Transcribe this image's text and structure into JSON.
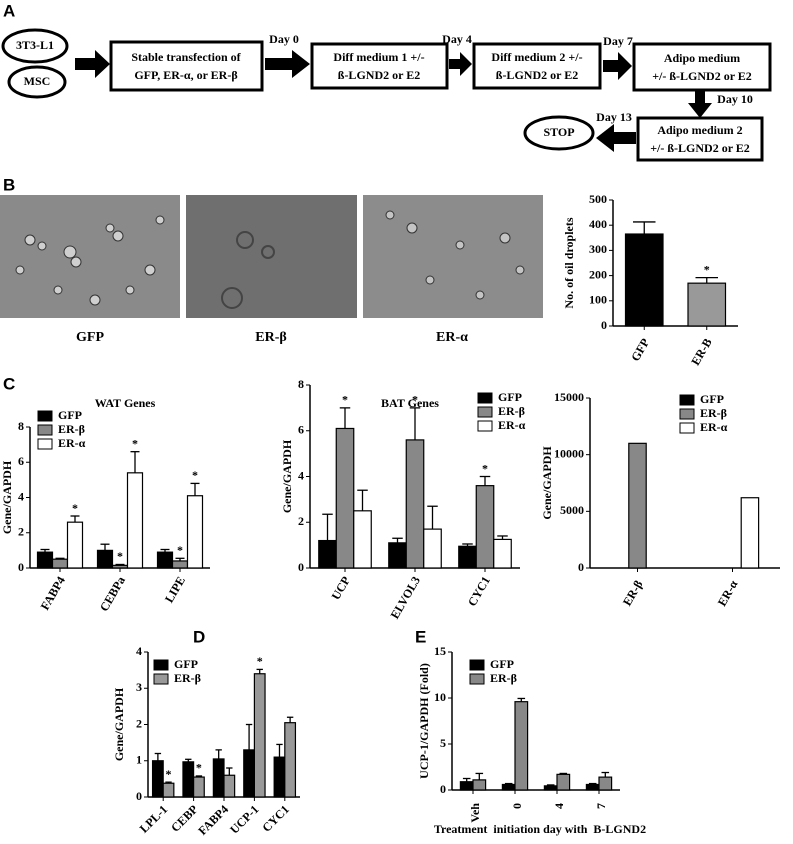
{
  "panels": [
    "A",
    "B",
    "C",
    "D",
    "E"
  ],
  "flowchart": {
    "nodes": [
      {
        "lines": [
          "3T3-L1"
        ]
      },
      {
        "lines": [
          "MSC"
        ]
      },
      {
        "lines": [
          "Stable transfection of",
          "GFP, ER-α, or ER-β"
        ]
      },
      {
        "lines": [
          "Diff medium 1 +/-",
          "ß-LGND2 or E2"
        ]
      },
      {
        "lines": [
          "Diff medium 2 +/-",
          "ß-LGND2 or E2"
        ]
      },
      {
        "lines": [
          "Adipo medium",
          "+/- ß-LGND2 or E2"
        ]
      },
      {
        "lines": [
          "Adipo medium 2",
          "+/- ß-LGND2 or E2"
        ]
      },
      {
        "lines": [
          "STOP"
        ]
      }
    ],
    "edges": [
      "Day 0",
      "Day 4",
      "Day 7",
      "Day 10",
      "Day 13"
    ]
  },
  "images": [
    "GFP",
    "ER-β",
    "ER-α"
  ],
  "chart_data": [
    {
      "type": "bar",
      "ylabel": "No. of oil droplets",
      "categories": [
        "GFP",
        "ER-B"
      ],
      "values": [
        365,
        170
      ],
      "errors": [
        48,
        22
      ],
      "colors": [
        "#000000",
        "#999999"
      ],
      "significance": [
        null,
        "*"
      ],
      "ylim": [
        0,
        500
      ],
      "yticks": [
        0,
        100,
        200,
        300,
        400,
        500
      ]
    },
    {
      "type": "bar",
      "title": "WAT Genes",
      "ylabel": "Gene/GAPDH",
      "categories": [
        "FABP4",
        "CEBPa",
        "LIPE"
      ],
      "series": [
        {
          "name": "GFP",
          "color": "#000000",
          "values": [
            0.9,
            1.0,
            0.9
          ],
          "errors": [
            0.15,
            0.35,
            0.15
          ],
          "significance": [
            null,
            null,
            null
          ]
        },
        {
          "name": "ER-β",
          "color": "#888888",
          "values": [
            0.5,
            0.15,
            0.4
          ],
          "errors": [
            0.05,
            0.05,
            0.15
          ],
          "significance": [
            null,
            "*",
            "*"
          ]
        },
        {
          "name": "ER-α",
          "color": "#ffffff",
          "values": [
            2.6,
            5.4,
            4.1
          ],
          "errors": [
            0.35,
            1.2,
            0.7
          ],
          "significance": [
            "*",
            "*",
            "*"
          ]
        }
      ],
      "ylim": [
        0,
        8
      ],
      "yticks": [
        0,
        2,
        4,
        6,
        8
      ]
    },
    {
      "type": "bar",
      "title": "BAT Genes",
      "ylabel": "Gene/GAPDH",
      "categories": [
        "UCP",
        "ELVOL3",
        "CYC1"
      ],
      "series": [
        {
          "name": "GFP",
          "color": "#000000",
          "values": [
            1.2,
            1.1,
            0.95
          ],
          "errors": [
            1.15,
            0.2,
            0.1
          ],
          "significance": [
            null,
            null,
            null
          ]
        },
        {
          "name": "ER-β",
          "color": "#888888",
          "values": [
            6.1,
            5.6,
            3.6
          ],
          "errors": [
            0.9,
            1.4,
            0.4
          ],
          "significance": [
            "*",
            "*",
            "*"
          ]
        },
        {
          "name": "ER-α",
          "color": "#ffffff",
          "values": [
            2.5,
            1.7,
            1.25
          ],
          "errors": [
            0.9,
            1.0,
            0.15
          ],
          "significance": [
            null,
            null,
            null
          ]
        }
      ],
      "ylim": [
        0,
        8
      ],
      "yticks": [
        0,
        2,
        4,
        6,
        8
      ]
    },
    {
      "type": "bar",
      "ylabel": "Gene/GAPDH",
      "categories": [
        "ER-β",
        "ER-α"
      ],
      "series": [
        {
          "name": "GFP",
          "color": "#000000",
          "values": [
            null,
            null
          ]
        },
        {
          "name": "ER-β",
          "color": "#888888",
          "values": [
            11000,
            null
          ]
        },
        {
          "name": "ER-α",
          "color": "#ffffff",
          "values": [
            null,
            6200
          ]
        }
      ],
      "ylim": [
        0,
        15000
      ],
      "yticks": [
        0,
        5000,
        10000,
        15000
      ]
    },
    {
      "type": "bar",
      "ylabel": "Gene/GAPDH",
      "categories": [
        "LPL-1",
        "CEBP",
        "FABP4",
        "UCP-1",
        "CYC1"
      ],
      "series": [
        {
          "name": "GFP",
          "color": "#000000",
          "values": [
            1.0,
            0.97,
            1.05,
            1.3,
            1.1
          ],
          "errors": [
            0.2,
            0.07,
            0.25,
            0.7,
            0.35
          ],
          "significance": [
            null,
            null,
            null,
            null,
            null
          ]
        },
        {
          "name": "ER-β",
          "color": "#999999",
          "values": [
            0.38,
            0.55,
            0.6,
            3.4,
            2.05
          ],
          "errors": [
            0.03,
            0.03,
            0.2,
            0.12,
            0.15
          ],
          "significance": [
            "*",
            "*",
            null,
            "*",
            null
          ]
        }
      ],
      "ylim": [
        0,
        4
      ],
      "yticks": [
        0,
        1,
        2,
        3,
        4
      ]
    },
    {
      "type": "bar",
      "ylabel": "UCP-1/GAPDH (Fold)",
      "xlabel": "Treatment  initiation day with  B-LGND2",
      "categories": [
        "Veh",
        "0",
        "4",
        "7"
      ],
      "series": [
        {
          "name": "GFP",
          "color": "#000000",
          "values": [
            0.9,
            0.6,
            0.45,
            0.6
          ],
          "errors": [
            0.35,
            0.1,
            0.1,
            0.1
          ]
        },
        {
          "name": "ER-β",
          "color": "#888888",
          "values": [
            1.1,
            9.6,
            1.7,
            1.4
          ],
          "errors": [
            0.7,
            0.35,
            0.1,
            0.5
          ]
        }
      ],
      "ylim": [
        0,
        15
      ],
      "yticks": [
        0,
        5,
        10,
        15
      ]
    }
  ]
}
